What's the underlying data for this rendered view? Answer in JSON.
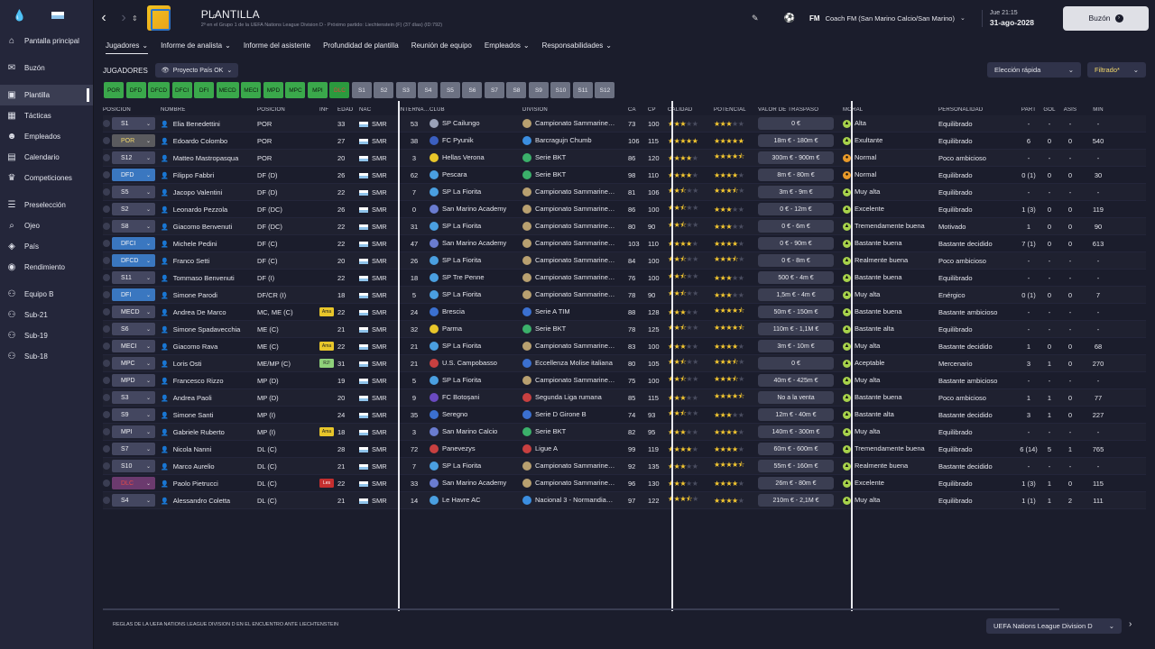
{
  "sidebar": {
    "items": [
      {
        "label": "Pantalla principal",
        "icon": "home-icon",
        "glyph": "⌂"
      },
      {
        "label": "Buzón",
        "icon": "inbox-icon",
        "glyph": "✉"
      },
      {
        "label": "Plantilla",
        "icon": "squad-icon",
        "glyph": "▣",
        "active": true
      },
      {
        "label": "Tácticas",
        "icon": "tactics-icon",
        "glyph": "▦"
      },
      {
        "label": "Empleados",
        "icon": "staff-icon",
        "glyph": "☻"
      },
      {
        "label": "Calendario",
        "icon": "calendar-icon",
        "glyph": "▤"
      },
      {
        "label": "Competiciones",
        "icon": "trophy-icon",
        "glyph": "♛"
      },
      {
        "label": "Preselección",
        "icon": "list-icon",
        "glyph": "☰"
      },
      {
        "label": "Ojeo",
        "icon": "scouting-icon",
        "glyph": "⌕"
      },
      {
        "label": "País",
        "icon": "shield-icon",
        "glyph": "◈"
      },
      {
        "label": "Rendimiento",
        "icon": "performance-icon",
        "glyph": "◉"
      },
      {
        "label": "Equipo B",
        "icon": "team-icon",
        "glyph": "⚇"
      },
      {
        "label": "Sub-21",
        "icon": "team-icon",
        "glyph": "⚇"
      },
      {
        "label": "Sub-19",
        "icon": "team-icon",
        "glyph": "⚇"
      },
      {
        "label": "Sub-18",
        "icon": "team-icon",
        "glyph": "⚇"
      }
    ]
  },
  "header": {
    "title": "PLANTILLA",
    "subtitle": "2º en el Grupo 1 de la UEFA Nations League Division D - Próximo partido: Liechtenstein (F) (37 días) (ID:792)",
    "coach": "Coach FM (San Marino Calcio/San Marino)",
    "time": "Jue 21:15",
    "date": "31-ago-2028",
    "continue": "Buzón",
    "fm": "FM"
  },
  "tabs": [
    {
      "label": "Jugadores",
      "dd": true,
      "active": true
    },
    {
      "label": "Informe de analista",
      "dd": true
    },
    {
      "label": "Informe del asistente"
    },
    {
      "label": "Profundidad de plantilla"
    },
    {
      "label": "Reunión de equipo"
    },
    {
      "label": "Empleados",
      "dd": true
    },
    {
      "label": "Responsabilidades",
      "dd": true
    }
  ],
  "toolbar": {
    "section": "JUGADORES",
    "project": "Proyecto País OK",
    "quick": "Elección rápida",
    "filter": "Filtrado*"
  },
  "chips": [
    {
      "t": "POR",
      "k": "g"
    },
    {
      "t": "DFD",
      "k": "g"
    },
    {
      "t": "DFCD",
      "k": "g"
    },
    {
      "t": "DFCI",
      "k": "g"
    },
    {
      "t": "DFI",
      "k": "g"
    },
    {
      "t": "MECD",
      "k": "g"
    },
    {
      "t": "MECI",
      "k": "g"
    },
    {
      "t": "MPD",
      "k": "g"
    },
    {
      "t": "MPC",
      "k": "g"
    },
    {
      "t": "MPI",
      "k": "g"
    },
    {
      "t": "DLC",
      "k": "r"
    },
    {
      "t": "S1",
      "k": "s"
    },
    {
      "t": "S2",
      "k": "s"
    },
    {
      "t": "S3",
      "k": "s"
    },
    {
      "t": "S4",
      "k": "s"
    },
    {
      "t": "S5",
      "k": "s"
    },
    {
      "t": "S6",
      "k": "s"
    },
    {
      "t": "S7",
      "k": "s"
    },
    {
      "t": "S8",
      "k": "s"
    },
    {
      "t": "S9",
      "k": "s"
    },
    {
      "t": "S10",
      "k": "s"
    },
    {
      "t": "S11",
      "k": "s"
    },
    {
      "t": "S12",
      "k": "s"
    }
  ],
  "columns": [
    "POSICIÓN",
    "NOMBRE",
    "POSICIÓN",
    "INF",
    "EDAD",
    "NAC",
    "INTERNA…",
    "CLUB",
    "DIVISIÓN",
    "CA",
    "CP",
    "CALIDAD",
    "POTENCIAL",
    "VALOR DE TRASPASO",
    "MORAL",
    "PERSONALIDAD",
    "PART",
    "GOL",
    "ASIS",
    "MIN"
  ],
  "players": [
    {
      "sel": "S1",
      "sc": "",
      "name": "Elia Benedettini",
      "pos": "POR",
      "inf": "",
      "age": "33",
      "nat": "SMR",
      "caps": "53",
      "club": "SP Cailungo",
      "clubc": "#9aa2b8",
      "div": "Campionato Sammarine…",
      "divc": "#b8a070",
      "ca": "73",
      "cp": "100",
      "q": 3,
      "p": 3,
      "val": "0 €",
      "mor": "Alta",
      "mc": "up",
      "pers": "Equilibrado",
      "part": "-",
      "gol": "-",
      "asis": "-",
      "min": "-"
    },
    {
      "sel": "POR",
      "sc": "yel",
      "name": "Edoardo Colombo",
      "pos": "POR",
      "inf": "",
      "age": "27",
      "nat": "SMR",
      "caps": "38",
      "club": "FC Pyunik",
      "clubc": "#3b5fc0",
      "div": "Barcragujn Chumb",
      "divc": "#3b8ee0",
      "ca": "106",
      "cp": "115",
      "q": 5,
      "p": 5,
      "val": "18m € - 180m €",
      "mor": "Exultante",
      "mc": "up",
      "pers": "Equilibrado",
      "part": "6",
      "gol": "0",
      "asis": "0",
      "min": "540"
    },
    {
      "sel": "S12",
      "sc": "",
      "name": "Matteo Mastropasqua",
      "pos": "POR",
      "inf": "",
      "age": "20",
      "nat": "SMR",
      "caps": "3",
      "club": "Hellas Verona",
      "clubc": "#e8c62a",
      "div": "Serie BKT",
      "divc": "#3bb06a",
      "ca": "86",
      "cp": "120",
      "q": 4,
      "p": 4.5,
      "val": "300m € - 900m €",
      "mor": "Normal",
      "mc": "mid",
      "pers": "Poco ambicioso",
      "part": "-",
      "gol": "-",
      "asis": "-",
      "min": "-"
    },
    {
      "sel": "DFD",
      "sc": "blue",
      "name": "Filippo Fabbri",
      "pos": "DF (D)",
      "inf": "",
      "age": "26",
      "nat": "SMR",
      "caps": "62",
      "club": "Pescara",
      "clubc": "#4a9fe0",
      "div": "Serie BKT",
      "divc": "#3bb06a",
      "ca": "98",
      "cp": "110",
      "q": 4,
      "p": 4,
      "val": "8m € - 80m €",
      "mor": "Normal",
      "mc": "mid",
      "pers": "Equilibrado",
      "part": "0 (1)",
      "gol": "0",
      "asis": "0",
      "min": "30"
    },
    {
      "sel": "S5",
      "sc": "",
      "name": "Jacopo Valentini",
      "pos": "DF (D)",
      "inf": "",
      "age": "22",
      "nat": "SMR",
      "caps": "7",
      "club": "SP La Fiorita",
      "clubc": "#4a9fe0",
      "div": "Campionato Sammarine…",
      "divc": "#b8a070",
      "ca": "81",
      "cp": "106",
      "q": 2.5,
      "p": 3.5,
      "val": "3m € - 9m €",
      "mor": "Muy alta",
      "mc": "up",
      "pers": "Equilibrado",
      "part": "-",
      "gol": "-",
      "asis": "-",
      "min": "-"
    },
    {
      "sel": "S2",
      "sc": "",
      "name": "Leonardo Pezzola",
      "pos": "DF (DC)",
      "inf": "",
      "age": "26",
      "nat": "SMR",
      "caps": "0",
      "club": "San Marino Academy",
      "clubc": "#6a7cd0",
      "div": "Campionato Sammarine…",
      "divc": "#b8a070",
      "ca": "86",
      "cp": "100",
      "q": 2.5,
      "p": 3,
      "val": "0 € - 12m €",
      "mor": "Excelente",
      "mc": "up",
      "pers": "Equilibrado",
      "part": "1 (3)",
      "gol": "0",
      "asis": "0",
      "min": "119"
    },
    {
      "sel": "S8",
      "sc": "",
      "name": "Giacomo Benvenuti",
      "pos": "DF (DC)",
      "inf": "",
      "age": "22",
      "nat": "SMR",
      "caps": "31",
      "club": "SP La Fiorita",
      "clubc": "#4a9fe0",
      "div": "Campionato Sammarine…",
      "divc": "#b8a070",
      "ca": "80",
      "cp": "90",
      "q": 2.5,
      "p": 3,
      "val": "0 € - 6m €",
      "mor": "Tremendamente buena",
      "mc": "up",
      "pers": "Motivado",
      "part": "1",
      "gol": "0",
      "asis": "0",
      "min": "90"
    },
    {
      "sel": "DFCI",
      "sc": "blue",
      "name": "Michele Pedini",
      "pos": "DF (C)",
      "inf": "",
      "age": "22",
      "nat": "SMR",
      "caps": "47",
      "club": "San Marino Academy",
      "clubc": "#6a7cd0",
      "div": "Campionato Sammarine…",
      "divc": "#b8a070",
      "ca": "103",
      "cp": "110",
      "q": 4,
      "p": 4,
      "val": "0 € - 90m €",
      "mor": "Bastante buena",
      "mc": "up",
      "pers": "Bastante decidido",
      "part": "7 (1)",
      "gol": "0",
      "asis": "0",
      "min": "613"
    },
    {
      "sel": "DFCD",
      "sc": "blue",
      "name": "Franco Setti",
      "pos": "DF (C)",
      "inf": "",
      "age": "20",
      "nat": "SMR",
      "caps": "26",
      "club": "SP La Fiorita",
      "clubc": "#4a9fe0",
      "div": "Campionato Sammarine…",
      "divc": "#b8a070",
      "ca": "84",
      "cp": "100",
      "q": 2.5,
      "p": 3.5,
      "val": "0 € - 8m €",
      "mor": "Realmente buena",
      "mc": "up",
      "pers": "Poco ambicioso",
      "part": "-",
      "gol": "-",
      "asis": "-",
      "min": "-"
    },
    {
      "sel": "S11",
      "sc": "",
      "name": "Tommaso Benvenuti",
      "pos": "DF (I)",
      "inf": "",
      "age": "22",
      "nat": "SMR",
      "caps": "18",
      "club": "SP Tre Penne",
      "clubc": "#4a9fe0",
      "div": "Campionato Sammarine…",
      "divc": "#b8a070",
      "ca": "76",
      "cp": "100",
      "q": 2.5,
      "p": 3,
      "val": "500 € - 4m €",
      "mor": "Bastante buena",
      "mc": "up",
      "pers": "Equilibrado",
      "part": "-",
      "gol": "-",
      "asis": "-",
      "min": "-"
    },
    {
      "sel": "DFI",
      "sc": "blue",
      "name": "Simone Parodi",
      "pos": "DF/CR (I)",
      "inf": "",
      "age": "18",
      "nat": "SMR",
      "caps": "5",
      "club": "SP La Fiorita",
      "clubc": "#4a9fe0",
      "div": "Campionato Sammarine…",
      "divc": "#b8a070",
      "ca": "78",
      "cp": "90",
      "q": 2.5,
      "p": 3,
      "val": "1,5m € - 4m €",
      "mor": "Muy alta",
      "mc": "up",
      "pers": "Enérgico",
      "part": "0 (1)",
      "gol": "0",
      "asis": "0",
      "min": "7"
    },
    {
      "sel": "MECD",
      "sc": "",
      "name": "Andrea De Marco",
      "pos": "MC, ME (C)",
      "inf": "Ama",
      "infc": "ama",
      "age": "22",
      "nat": "SMR",
      "caps": "24",
      "club": "Brescia",
      "clubc": "#3b70d0",
      "div": "Serie A TIM",
      "divc": "#3b70d0",
      "ca": "88",
      "cp": "128",
      "q": 3,
      "p": 4.5,
      "val": "50m € - 150m €",
      "mor": "Bastante buena",
      "mc": "up",
      "pers": "Bastante ambicioso",
      "part": "-",
      "gol": "-",
      "asis": "-",
      "min": "-"
    },
    {
      "sel": "S6",
      "sc": "",
      "name": "Simone Spadavecchia",
      "pos": "ME (C)",
      "inf": "",
      "age": "21",
      "nat": "SMR",
      "caps": "32",
      "club": "Parma",
      "clubc": "#e8c62a",
      "div": "Serie BKT",
      "divc": "#3bb06a",
      "ca": "78",
      "cp": "125",
      "q": 2.5,
      "p": 4.5,
      "val": "110m € - 1,1M €",
      "mor": "Bastante alta",
      "mc": "up",
      "pers": "Equilibrado",
      "part": "-",
      "gol": "-",
      "asis": "-",
      "min": "-"
    },
    {
      "sel": "MECI",
      "sc": "",
      "name": "Giacomo Rava",
      "pos": "ME (C)",
      "inf": "Ama",
      "infc": "ama",
      "age": "22",
      "nat": "SMR",
      "caps": "21",
      "club": "SP La Fiorita",
      "clubc": "#4a9fe0",
      "div": "Campionato Sammarine…",
      "divc": "#b8a070",
      "ca": "83",
      "cp": "100",
      "q": 3,
      "p": 4,
      "val": "3m € - 10m €",
      "mor": "Muy alta",
      "mc": "up",
      "pers": "Bastante decidido",
      "part": "1",
      "gol": "0",
      "asis": "0",
      "min": "68"
    },
    {
      "sel": "MPC",
      "sc": "",
      "name": "Loris Osti",
      "pos": "ME/MP (C)",
      "inf": "RJ!",
      "infc": "rj",
      "age": "31",
      "nat": "SMR",
      "caps": "21",
      "club": "U.S. Campobasso",
      "clubc": "#c84040",
      "div": "Eccellenza Molise italiana",
      "divc": "#3b70d0",
      "ca": "80",
      "cp": "105",
      "q": 2.5,
      "p": 3.5,
      "val": "0 €",
      "mor": "Aceptable",
      "mc": "up",
      "pers": "Mercenario",
      "part": "3",
      "gol": "1",
      "asis": "0",
      "min": "270"
    },
    {
      "sel": "MPD",
      "sc": "",
      "name": "Francesco Rizzo",
      "pos": "MP (D)",
      "inf": "",
      "age": "19",
      "nat": "SMR",
      "caps": "5",
      "club": "SP La Fiorita",
      "clubc": "#4a9fe0",
      "div": "Campionato Sammarine…",
      "divc": "#b8a070",
      "ca": "75",
      "cp": "100",
      "q": 2.5,
      "p": 3.5,
      "val": "40m € - 425m €",
      "mor": "Muy alta",
      "mc": "up",
      "pers": "Bastante ambicioso",
      "part": "-",
      "gol": "-",
      "asis": "-",
      "min": "-"
    },
    {
      "sel": "S3",
      "sc": "",
      "name": "Andrea Paoli",
      "pos": "MP (D)",
      "inf": "",
      "age": "20",
      "nat": "SMR",
      "caps": "9",
      "club": "FC Botoșani",
      "clubc": "#6a4ac0",
      "div": "Segunda Liga rumana",
      "divc": "#c84040",
      "ca": "85",
      "cp": "115",
      "q": 3,
      "p": 4.5,
      "val": "No a la venta",
      "mor": "Bastante buena",
      "mc": "up",
      "pers": "Poco ambicioso",
      "part": "1",
      "gol": "1",
      "asis": "0",
      "min": "77"
    },
    {
      "sel": "S9",
      "sc": "",
      "name": "Simone Santi",
      "pos": "MP (I)",
      "inf": "",
      "age": "24",
      "nat": "SMR",
      "caps": "35",
      "club": "Seregno",
      "clubc": "#3b70d0",
      "div": "Serie D Girone B",
      "divc": "#3b70d0",
      "ca": "74",
      "cp": "93",
      "q": 2.5,
      "p": 3,
      "val": "12m € - 40m €",
      "mor": "Bastante alta",
      "mc": "up",
      "pers": "Bastante decidido",
      "part": "3",
      "gol": "1",
      "asis": "0",
      "min": "227"
    },
    {
      "sel": "MPI",
      "sc": "",
      "name": "Gabriele Ruberto",
      "pos": "MP (I)",
      "inf": "Ama",
      "infc": "ama",
      "age": "18",
      "nat": "SMR",
      "caps": "3",
      "club": "San Marino Calcio",
      "clubc": "#6a7cd0",
      "div": "Serie BKT",
      "divc": "#3bb06a",
      "ca": "82",
      "cp": "95",
      "q": 3,
      "p": 4,
      "val": "140m € - 300m €",
      "mor": "Muy alta",
      "mc": "up",
      "pers": "Equilibrado",
      "part": "-",
      "gol": "-",
      "asis": "-",
      "min": "-"
    },
    {
      "sel": "S7",
      "sc": "",
      "name": "Nicola Nanni",
      "pos": "DL (C)",
      "inf": "",
      "age": "28",
      "nat": "SMR",
      "caps": "72",
      "club": "Panevezys",
      "clubc": "#c84040",
      "div": "Ligue A",
      "divc": "#c84040",
      "ca": "99",
      "cp": "119",
      "q": 4,
      "p": 4,
      "val": "60m € - 600m €",
      "mor": "Tremendamente buena",
      "mc": "up",
      "pers": "Equilibrado",
      "part": "6 (14)",
      "gol": "5",
      "asis": "1",
      "min": "765"
    },
    {
      "sel": "S10",
      "sc": "",
      "name": "Marco Aurelio",
      "pos": "DL (C)",
      "inf": "",
      "age": "21",
      "nat": "SMR",
      "caps": "7",
      "club": "SP La Fiorita",
      "clubc": "#4a9fe0",
      "div": "Campionato Sammarine…",
      "divc": "#b8a070",
      "ca": "92",
      "cp": "135",
      "q": 3,
      "p": 4.5,
      "val": "55m € - 160m €",
      "mor": "Realmente buena",
      "mc": "up",
      "pers": "Bastante decidido",
      "part": "-",
      "gol": "-",
      "asis": "-",
      "min": "-"
    },
    {
      "sel": "DLC",
      "sc": "red",
      "name": "Paolo Pietrucci",
      "pos": "DL (C)",
      "inf": "Les",
      "infc": "les",
      "age": "22",
      "nat": "SMR",
      "caps": "33",
      "club": "San Marino Academy",
      "clubc": "#6a7cd0",
      "div": "Campionato Sammarine…",
      "divc": "#b8a070",
      "ca": "96",
      "cp": "130",
      "q": 3,
      "p": 4,
      "val": "26m € - 80m €",
      "mor": "Excelente",
      "mc": "up",
      "pers": "Equilibrado",
      "part": "1 (3)",
      "gol": "1",
      "asis": "0",
      "min": "115"
    },
    {
      "sel": "S4",
      "sc": "",
      "name": "Alessandro Coletta",
      "pos": "DL (C)",
      "inf": "",
      "age": "21",
      "nat": "SMR",
      "caps": "14",
      "club": "Le Havre AC",
      "clubc": "#4a9fe0",
      "div": "Nacional 3 - Normandia…",
      "divc": "#3b8ee0",
      "ca": "97",
      "cp": "122",
      "q": 3.5,
      "p": 4,
      "val": "210m € - 2,1M €",
      "mor": "Muy alta",
      "mc": "up",
      "pers": "Equilibrado",
      "part": "1 (1)",
      "gol": "1",
      "asis": "2",
      "min": "111"
    }
  ],
  "footer": {
    "text": "REGLAS DE LA UEFA NATIONS LEAGUE DIVISION D EN EL ENCUENTRO ANTE LIECHTENSTEIN",
    "competition": "UEFA Nations League Division D"
  }
}
